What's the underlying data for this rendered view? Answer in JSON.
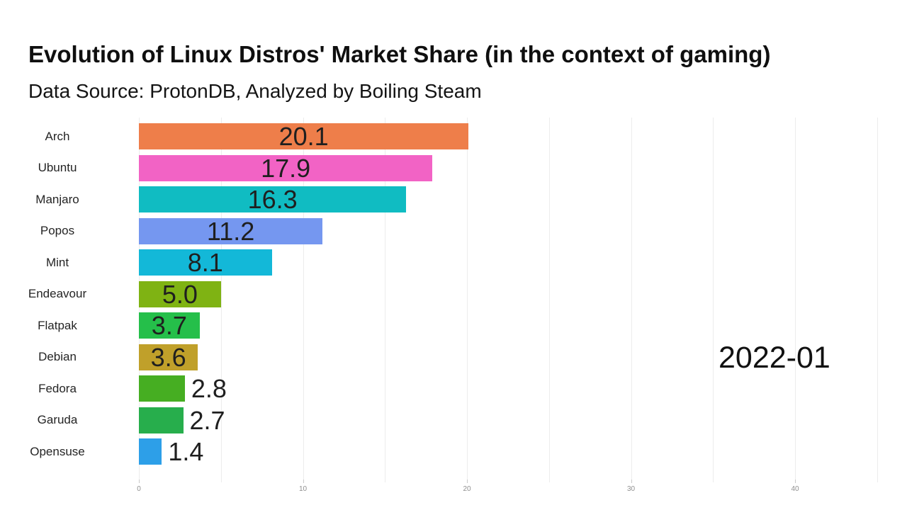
{
  "chart_data": {
    "type": "bar",
    "orientation": "horizontal",
    "title": "Evolution of Linux Distros' Market Share (in the context of gaming)",
    "subtitle": "Data Source: ProtonDB, Analyzed by Boiling Steam",
    "period_label": "2022-01",
    "categories": [
      "Arch",
      "Ubuntu",
      "Manjaro",
      "Popos",
      "Mint",
      "Endeavour",
      "Flatpak",
      "Debian",
      "Fedora",
      "Garuda",
      "Opensuse"
    ],
    "values": [
      20.1,
      17.9,
      16.3,
      11.2,
      8.1,
      5.0,
      3.7,
      3.6,
      2.8,
      2.7,
      1.4
    ],
    "bar_colors": [
      "#ee7e4a",
      "#f263c5",
      "#10bcc2",
      "#7597f0",
      "#13b8d8",
      "#7fb313",
      "#25bf4a",
      "#c0a02a",
      "#46ae22",
      "#27ae4c",
      "#2d9fe8"
    ],
    "value_label_color": "#1f1f1f",
    "xlabel": "",
    "ylabel": "",
    "xlim": [
      0,
      45
    ],
    "x_ticks": [
      0,
      10,
      20,
      30,
      40
    ],
    "x_minor_gridline_every": 5,
    "grid": true,
    "legend": false,
    "background_color": "#ffffff"
  }
}
